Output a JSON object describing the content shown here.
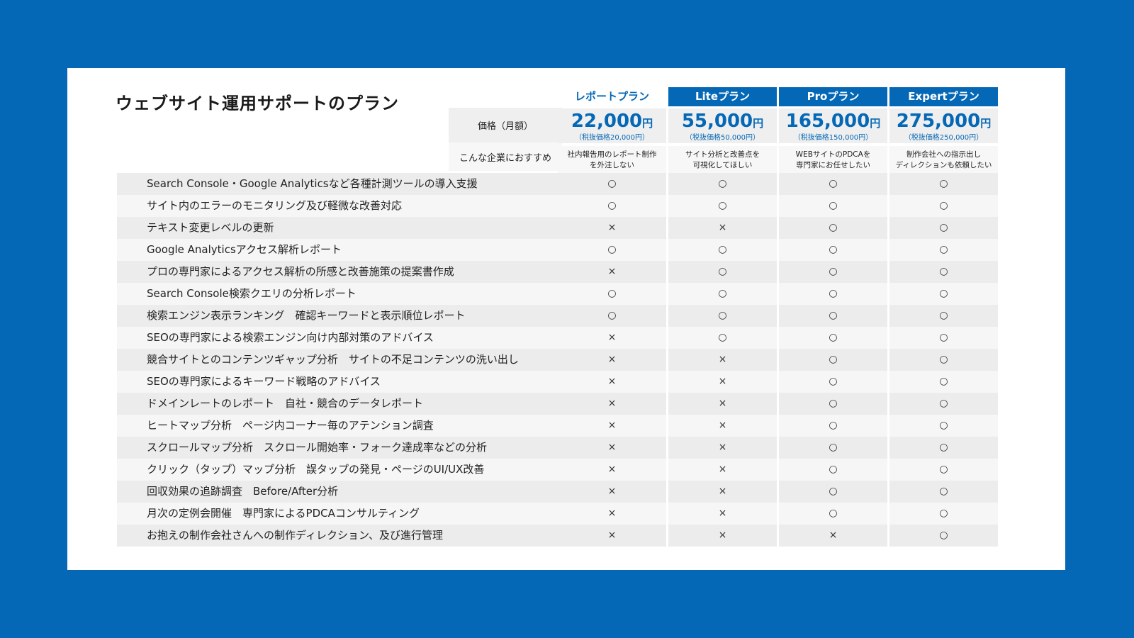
{
  "title": "ウェブサイト運用サポートのプラン",
  "row_labels": {
    "price": "価格（月額）",
    "recommend": "こんな企業におすすめ"
  },
  "plans": [
    {
      "name": "レポートプラン",
      "price": "22,000",
      "yen": "円",
      "tax": "（税抜価格20,000円）",
      "recommend_1": "社内報告用のレポート制作",
      "recommend_2": "を外注しない"
    },
    {
      "name": "Liteプラン",
      "price": "55,000",
      "yen": "円",
      "tax": "（税抜価格50,000円）",
      "recommend_1": "サイト分析と改善点を",
      "recommend_2": "可視化してほしい"
    },
    {
      "name": "Proプラン",
      "price": "165,000",
      "yen": "円",
      "tax": "（税抜価格150,000円）",
      "recommend_1": "WEBサイトのPDCAを",
      "recommend_2": "専門家にお任せしたい"
    },
    {
      "name": "Expertプラン",
      "price": "275,000",
      "yen": "円",
      "tax": "（税抜価格250,000円）",
      "recommend_1": "制作会社への指示出し",
      "recommend_2": "ディレクションも依頼したい"
    }
  ],
  "features": [
    {
      "label": "Search Console・Google Analyticsなど各種計測ツールの導入支援",
      "marks": [
        "○",
        "○",
        "○",
        "○"
      ]
    },
    {
      "label": "サイト内のエラーのモニタリング及び軽微な改善対応",
      "marks": [
        "○",
        "○",
        "○",
        "○"
      ]
    },
    {
      "label": "テキスト変更レベルの更新",
      "marks": [
        "×",
        "×",
        "○",
        "○"
      ]
    },
    {
      "label": "Google Analyticsアクセス解析レポート",
      "marks": [
        "○",
        "○",
        "○",
        "○"
      ]
    },
    {
      "label": "プロの専門家によるアクセス解析の所感と改善施策の提案書作成",
      "marks": [
        "×",
        "○",
        "○",
        "○"
      ]
    },
    {
      "label": "Search Console検索クエリの分析レポート",
      "marks": [
        "○",
        "○",
        "○",
        "○"
      ]
    },
    {
      "label": "検索エンジン表示ランキング　確認キーワードと表示順位レポート",
      "marks": [
        "○",
        "○",
        "○",
        "○"
      ]
    },
    {
      "label": "SEOの専門家による検索エンジン向け内部対策のアドバイス",
      "marks": [
        "×",
        "○",
        "○",
        "○"
      ]
    },
    {
      "label": "競合サイトとのコンテンツギャップ分析　サイトの不足コンテンツの洗い出し",
      "marks": [
        "×",
        "×",
        "○",
        "○"
      ]
    },
    {
      "label": "SEOの専門家によるキーワード戦略のアドバイス",
      "marks": [
        "×",
        "×",
        "○",
        "○"
      ]
    },
    {
      "label": "ドメインレートのレポート　自社・競合のデータレポート",
      "marks": [
        "×",
        "×",
        "○",
        "○"
      ]
    },
    {
      "label": "ヒートマップ分析　ページ内コーナー毎のアテンション調査",
      "marks": [
        "×",
        "×",
        "○",
        "○"
      ]
    },
    {
      "label": "スクロールマップ分析　スクロール開始率・フォーク達成率などの分析",
      "marks": [
        "×",
        "×",
        "○",
        "○"
      ]
    },
    {
      "label": "クリック（タップ）マップ分析　誤タップの発見・ページのUI/UX改善",
      "marks": [
        "×",
        "×",
        "○",
        "○"
      ]
    },
    {
      "label": "回収効果の追跡調査　Before/After分析",
      "marks": [
        "×",
        "×",
        "○",
        "○"
      ]
    },
    {
      "label": "月次の定例会開催　専門家によるPDCAコンサルティング",
      "marks": [
        "×",
        "×",
        "○",
        "○"
      ]
    },
    {
      "label": "お抱えの制作会社さんへの制作ディレクション、及び進行管理",
      "marks": [
        "×",
        "×",
        "×",
        "○"
      ]
    }
  ],
  "colors": {
    "brand_blue": "#0568b6",
    "row_dark": "#ececec",
    "row_light": "#f6f6f6"
  }
}
